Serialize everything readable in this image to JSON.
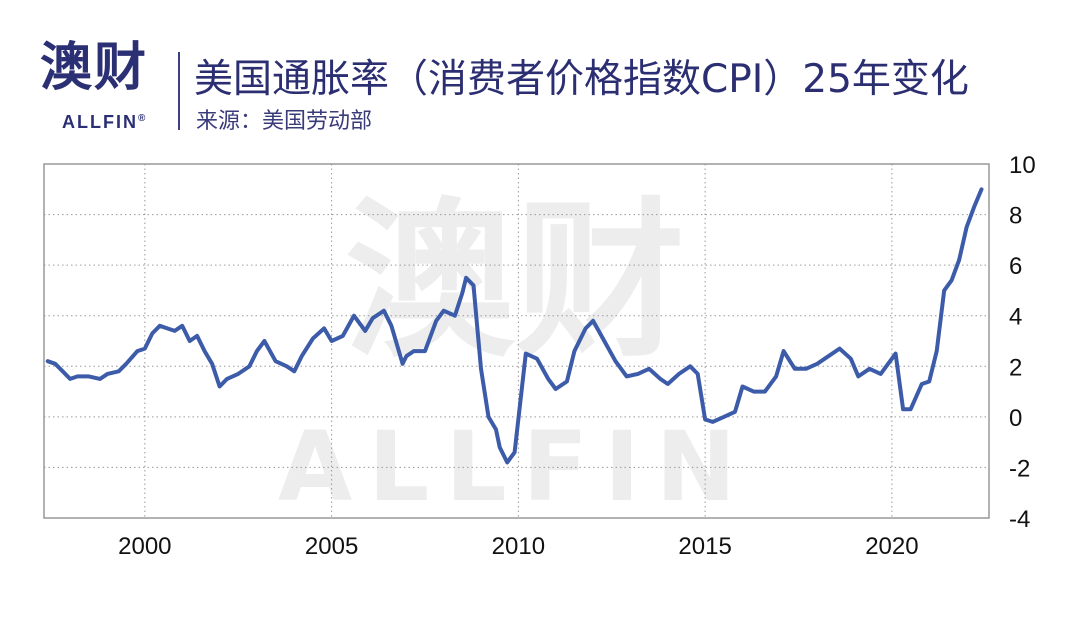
{
  "brand": {
    "name_cn": "澳财",
    "name_en": "ALLFIN",
    "reg_mark": "®",
    "color": "#2b2f73"
  },
  "header": {
    "title": "美国通胀率（消费者价格指数CPI）25年变化",
    "subtitle": "来源：美国劳动部"
  },
  "chart_data": {
    "type": "line",
    "title": "美国通胀率（消费者价格指数CPI）25年变化",
    "xlabel": "",
    "ylabel": "",
    "xlim": [
      1997.3,
      2022.6
    ],
    "ylim": [
      -4,
      10
    ],
    "x_ticks": [
      2000,
      2005,
      2010,
      2015,
      2020
    ],
    "x_tick_labels": [
      "2000",
      "2005",
      "2010",
      "2015",
      "2020"
    ],
    "y_ticks": [
      10,
      8,
      6,
      4,
      2,
      0,
      -2,
      -4
    ],
    "y_tick_labels": [
      "10",
      "8",
      "6",
      "4",
      "2",
      "0",
      "-2",
      "-4"
    ],
    "y_axis_position": "right",
    "grid": true,
    "line_color": "#3c5ba8",
    "series": [
      {
        "x": [
          1997.4,
          1997.6,
          1997.8,
          1998.0,
          1998.2,
          1998.5,
          1998.8,
          1999.0,
          1999.3,
          1999.5,
          1999.8,
          2000.0,
          2000.2,
          2000.4,
          2000.6,
          2000.8,
          2001.0,
          2001.2,
          2001.4,
          2001.6,
          2001.8,
          2002.0,
          2002.2,
          2002.5,
          2002.8,
          2003.0,
          2003.2,
          2003.5,
          2003.8,
          2004.0,
          2004.2,
          2004.5,
          2004.8,
          2005.0,
          2005.3,
          2005.6,
          2005.9,
          2006.1,
          2006.4,
          2006.6,
          2006.9,
          2007.0,
          2007.2,
          2007.5,
          2007.8,
          2008.0,
          2008.3,
          2008.5,
          2008.6,
          2008.8,
          2009.0,
          2009.2,
          2009.4,
          2009.5,
          2009.7,
          2009.9,
          2010.2,
          2010.5,
          2010.8,
          2011.0,
          2011.3,
          2011.5,
          2011.8,
          2012.0,
          2012.3,
          2012.6,
          2012.9,
          2013.2,
          2013.5,
          2013.8,
          2014.0,
          2014.3,
          2014.6,
          2014.8,
          2015.0,
          2015.2,
          2015.5,
          2015.8,
          2016.0,
          2016.3,
          2016.6,
          2016.9,
          2017.1,
          2017.4,
          2017.7,
          2018.0,
          2018.3,
          2018.6,
          2018.9,
          2019.1,
          2019.4,
          2019.7,
          2020.0,
          2020.1,
          2020.3,
          2020.5,
          2020.8,
          2021.0,
          2021.2,
          2021.4,
          2021.6,
          2021.8,
          2022.0,
          2022.2,
          2022.4
        ],
        "values": [
          2.2,
          2.1,
          1.8,
          1.5,
          1.6,
          1.6,
          1.5,
          1.7,
          1.8,
          2.1,
          2.6,
          2.7,
          3.3,
          3.6,
          3.5,
          3.4,
          3.6,
          3.0,
          3.2,
          2.6,
          2.1,
          1.2,
          1.5,
          1.7,
          2.0,
          2.6,
          3.0,
          2.2,
          2.0,
          1.8,
          2.4,
          3.1,
          3.5,
          3.0,
          3.2,
          4.0,
          3.4,
          3.9,
          4.2,
          3.6,
          2.1,
          2.4,
          2.6,
          2.6,
          3.8,
          4.2,
          4.0,
          4.9,
          5.5,
          5.2,
          1.9,
          0.0,
          -0.5,
          -1.2,
          -1.8,
          -1.4,
          2.5,
          2.3,
          1.5,
          1.1,
          1.4,
          2.6,
          3.5,
          3.8,
          3.0,
          2.2,
          1.6,
          1.7,
          1.9,
          1.5,
          1.3,
          1.7,
          2.0,
          1.7,
          -0.1,
          -0.2,
          0.0,
          0.2,
          1.2,
          1.0,
          1.0,
          1.6,
          2.6,
          1.9,
          1.9,
          2.1,
          2.4,
          2.7,
          2.3,
          1.6,
          1.9,
          1.7,
          2.3,
          2.5,
          0.3,
          0.3,
          1.3,
          1.4,
          2.6,
          5.0,
          5.4,
          6.2,
          7.5,
          8.3,
          9.0
        ]
      }
    ]
  },
  "watermark": {
    "cn": "澳财",
    "en": "ALLFIN"
  }
}
